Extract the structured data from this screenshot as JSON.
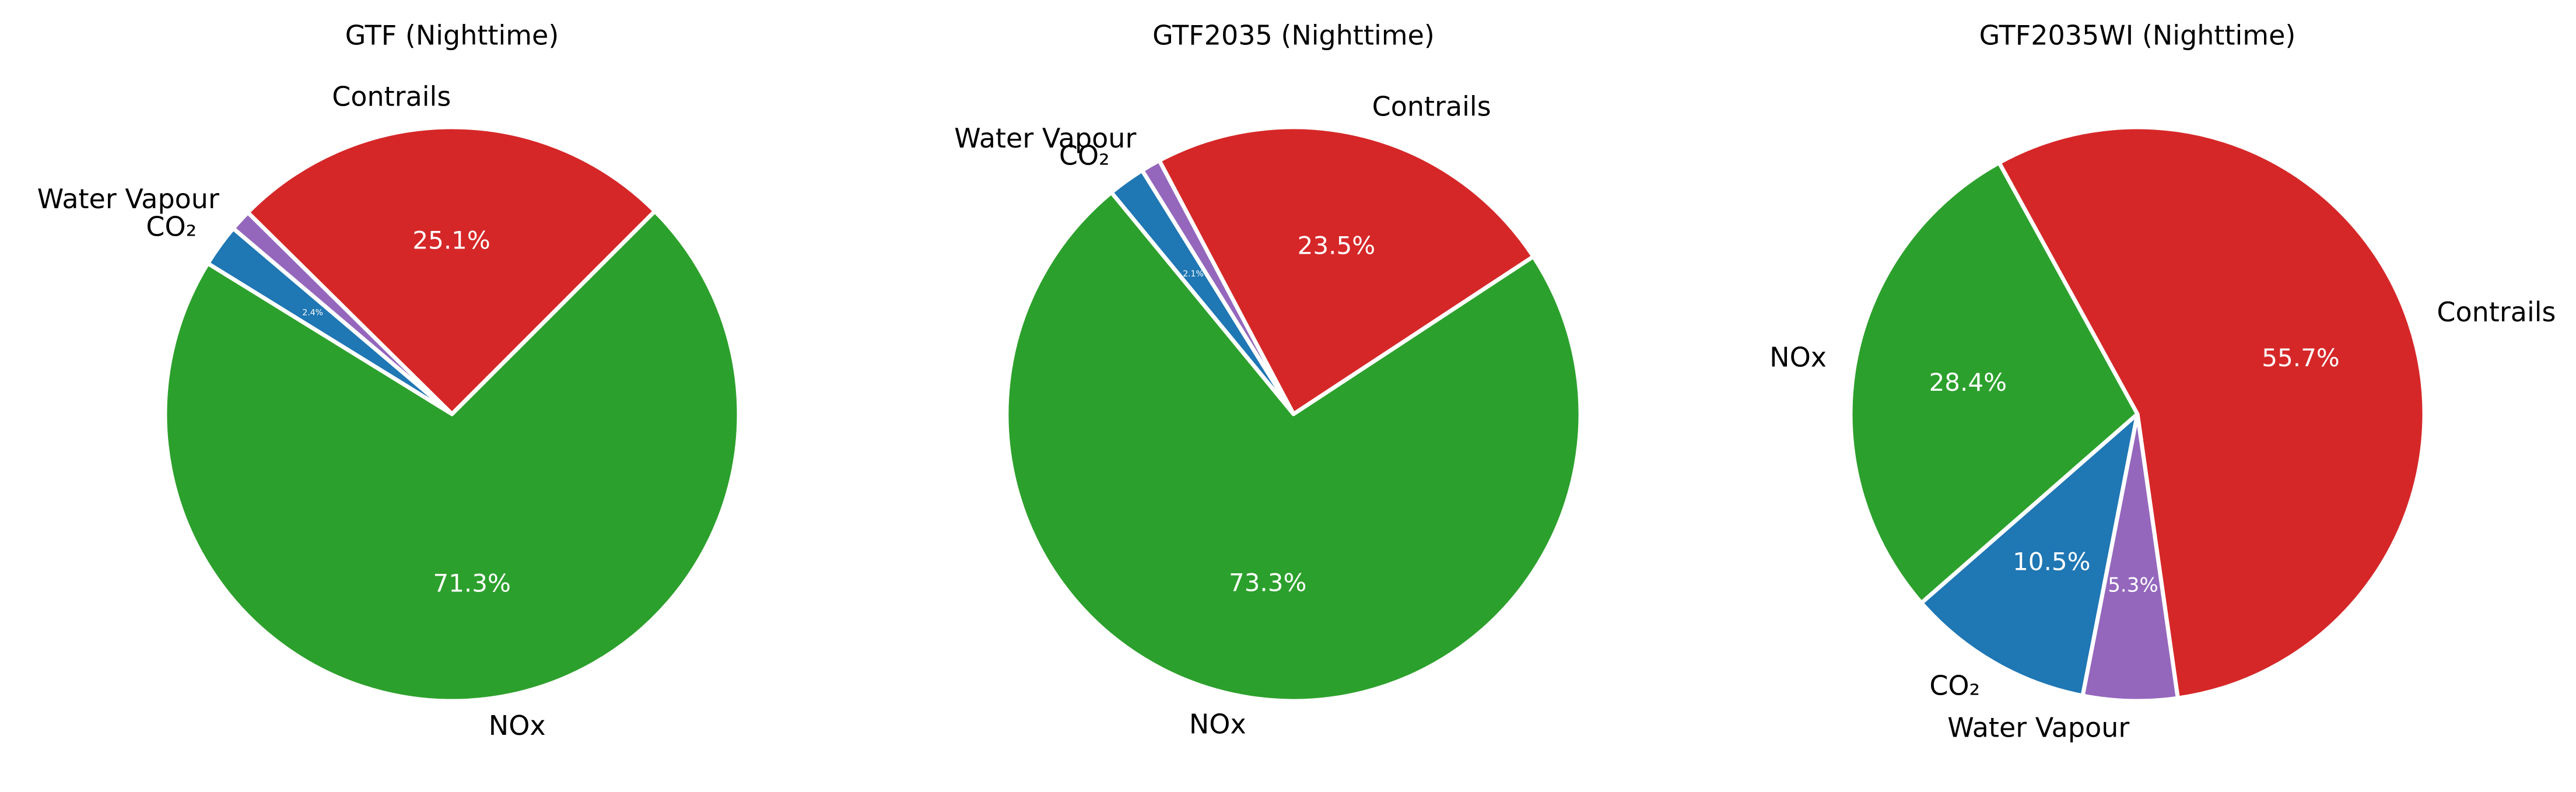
{
  "chart_data": [
    {
      "type": "pie",
      "title": "GTF (Nighttime)",
      "start_angle_deg": 45,
      "slices": [
        {
          "label": "Contrails",
          "value": 25.1,
          "pct_text": "25.1%",
          "color": "#d62728"
        },
        {
          "label": "Water Vapour",
          "value": 1.2,
          "pct_text": "",
          "color": "#9467bd"
        },
        {
          "label": "CO₂",
          "value": 2.4,
          "pct_text": "2.4%",
          "color": "#1f77b4"
        },
        {
          "label": "NOx",
          "value": 71.3,
          "pct_text": "71.3%",
          "color": "#2ca02c"
        }
      ]
    },
    {
      "type": "pie",
      "title": "GTF2035 (Nighttime)",
      "start_angle_deg": 33.3,
      "slices": [
        {
          "label": "Contrails",
          "value": 23.5,
          "pct_text": "23.5%",
          "color": "#d62728"
        },
        {
          "label": "Water Vapour",
          "value": 1.1,
          "pct_text": "",
          "color": "#9467bd"
        },
        {
          "label": "CO₂",
          "value": 2.1,
          "pct_text": "2.1%",
          "color": "#1f77b4"
        },
        {
          "label": "NOx",
          "value": 73.3,
          "pct_text": "73.3%",
          "color": "#2ca02c"
        }
      ]
    },
    {
      "type": "pie",
      "title": "GTF2035WI (Nighttime)",
      "start_angle_deg": -81.9,
      "slices": [
        {
          "label": "Contrails",
          "value": 55.7,
          "pct_text": "55.7%",
          "color": "#d62728"
        },
        {
          "label": "NOx",
          "value": 28.4,
          "pct_text": "28.4%",
          "color": "#2ca02c"
        },
        {
          "label": "CO₂",
          "value": 10.5,
          "pct_text": "10.5%",
          "color": "#1f77b4"
        },
        {
          "label": "Water Vapour",
          "value": 5.3,
          "pct_text": "5.3%",
          "color": "#9467bd"
        }
      ]
    }
  ]
}
